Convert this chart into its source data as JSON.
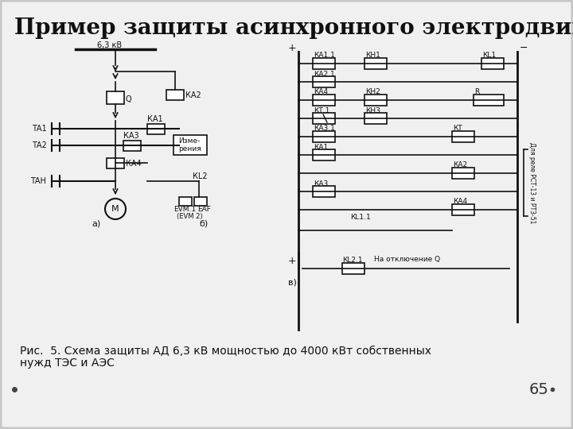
{
  "title": "Пример защиты асинхронного электродвигателя",
  "caption_line1": "Рис.  5. Схема защиты АД 6,3 кВ мощностью до 4000 кВт собственных",
  "caption_line2": "нужд ТЭС и АЭС",
  "page_number": "65",
  "background_color": "#c8c8c8",
  "slide_bg": "#efefef",
  "title_fontsize": 20,
  "caption_fontsize": 10,
  "page_fontsize": 14
}
